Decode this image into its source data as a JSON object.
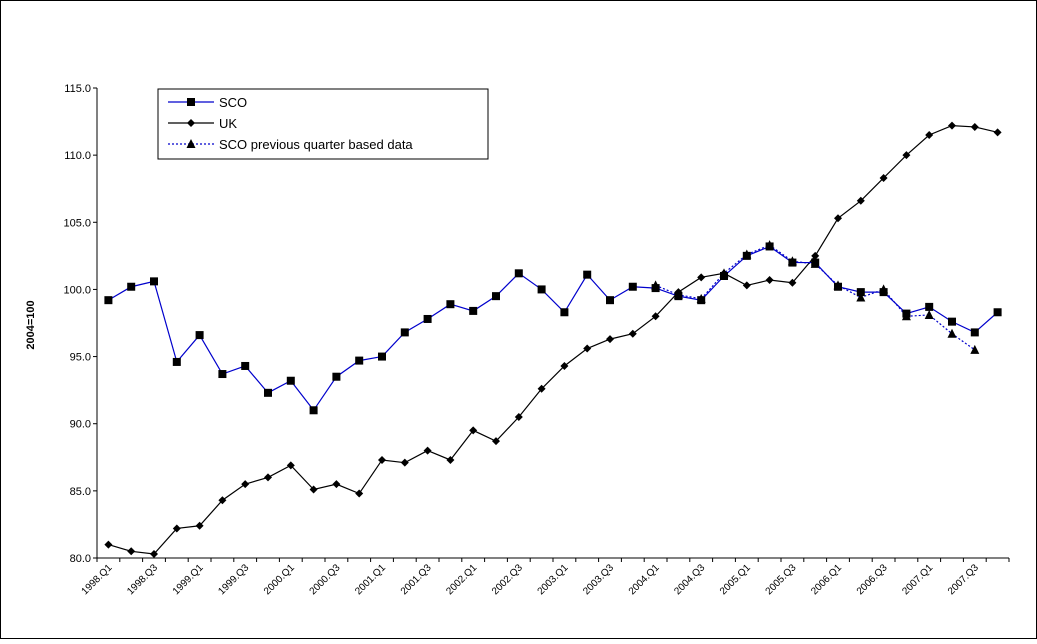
{
  "chart_data": {
    "type": "line",
    "title": "",
    "xlabel": "",
    "ylabel": "2004=100",
    "ylim": [
      80,
      115
    ],
    "y_ticks": [
      "80.0",
      "85.0",
      "90.0",
      "95.0",
      "100.0",
      "105.0",
      "110.0",
      "115.0"
    ],
    "x_tick_labels": [
      "1998.Q1",
      "1998.Q3",
      "1999.Q1",
      "1999.Q3",
      "2000.Q1",
      "2000.Q3",
      "2001.Q1",
      "2001.Q3",
      "2002.Q1",
      "2002.Q3",
      "2003.Q1",
      "2003.Q3",
      "2004.Q1",
      "2004.Q3",
      "2005.Q1",
      "2005.Q3",
      "2006.Q1",
      "2006.Q3",
      "2007.Q1",
      "2007.Q3"
    ],
    "categories": [
      "1998.Q1",
      "1998.Q2",
      "1998.Q3",
      "1998.Q4",
      "1999.Q1",
      "1999.Q2",
      "1999.Q3",
      "1999.Q4",
      "2000.Q1",
      "2000.Q2",
      "2000.Q3",
      "2000.Q4",
      "2001.Q1",
      "2001.Q2",
      "2001.Q3",
      "2001.Q4",
      "2002.Q1",
      "2002.Q2",
      "2002.Q3",
      "2002.Q4",
      "2003.Q1",
      "2003.Q2",
      "2003.Q3",
      "2003.Q4",
      "2004.Q1",
      "2004.Q2",
      "2004.Q3",
      "2004.Q4",
      "2005.Q1",
      "2005.Q2",
      "2005.Q3",
      "2005.Q4",
      "2006.Q1",
      "2006.Q2",
      "2006.Q3",
      "2006.Q4",
      "2007.Q1",
      "2007.Q2",
      "2007.Q3",
      "2007.Q4"
    ],
    "grid": false,
    "legend_position": "top-left",
    "series": [
      {
        "name": "SCO",
        "color": "#0000cc",
        "marker": "square",
        "style": "solid",
        "values": [
          99.2,
          100.2,
          100.6,
          94.6,
          96.6,
          93.7,
          94.3,
          92.3,
          93.2,
          91.0,
          93.5,
          94.7,
          95.0,
          96.8,
          97.8,
          98.9,
          98.4,
          99.5,
          101.2,
          100.0,
          98.3,
          101.1,
          99.2,
          100.2,
          100.1,
          99.5,
          99.2,
          101.0,
          102.5,
          103.2,
          102.0,
          102.0,
          100.2,
          99.8,
          99.8,
          98.2,
          98.7,
          97.6,
          96.8,
          98.3
        ]
      },
      {
        "name": "UK",
        "color": "#000000",
        "marker": "diamond",
        "style": "solid",
        "values": [
          81.0,
          80.5,
          80.3,
          82.2,
          82.4,
          84.3,
          85.5,
          86.0,
          86.9,
          85.1,
          85.5,
          84.8,
          87.3,
          87.1,
          88.0,
          87.3,
          89.5,
          88.7,
          90.5,
          92.6,
          94.3,
          95.6,
          96.3,
          96.7,
          98.0,
          99.8,
          100.9,
          101.2,
          100.3,
          100.7,
          100.5,
          102.5,
          105.3,
          106.6,
          108.3,
          110.0,
          111.5,
          112.2,
          112.1,
          111.7
        ]
      },
      {
        "name": "SCO previous quarter based data",
        "color": "#0000cc",
        "marker": "triangle",
        "style": "dotted",
        "values": [
          null,
          null,
          null,
          null,
          null,
          null,
          null,
          null,
          null,
          null,
          null,
          null,
          null,
          null,
          null,
          null,
          null,
          null,
          null,
          null,
          null,
          null,
          null,
          null,
          100.3,
          99.6,
          99.3,
          101.2,
          102.6,
          103.3,
          102.1,
          101.9,
          100.3,
          99.4,
          100.0,
          98.0,
          98.1,
          96.7,
          95.5,
          null
        ]
      }
    ]
  }
}
